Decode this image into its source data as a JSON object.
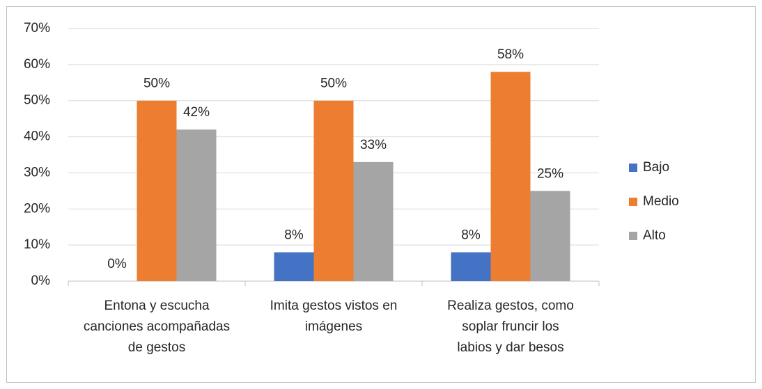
{
  "chart_data": {
    "type": "bar",
    "categories": [
      "Entona y escucha canciones acompañadas de gestos",
      "Imita gestos vistos en imágenes",
      "Realiza gestos, como soplar fruncir los labios y dar besos"
    ],
    "series": [
      {
        "name": "Bajo",
        "color": "#4472c4",
        "values": [
          0,
          8,
          8
        ],
        "value_labels": [
          "0%",
          "8%",
          "8%"
        ]
      },
      {
        "name": "Medio",
        "color": "#ed7d31",
        "values": [
          50,
          50,
          58
        ],
        "value_labels": [
          "50%",
          "50%",
          "58%"
        ]
      },
      {
        "name": "Alto",
        "color": "#a5a5a5",
        "values": [
          42,
          33,
          25
        ],
        "value_labels": [
          "42%",
          "33%",
          "25%"
        ]
      }
    ],
    "ylim": [
      0,
      70
    ],
    "yticks": [
      {
        "value": 0,
        "label": "0%"
      },
      {
        "value": 10,
        "label": "10%"
      },
      {
        "value": 20,
        "label": "20%"
      },
      {
        "value": 30,
        "label": "30%"
      },
      {
        "value": 40,
        "label": "40%"
      },
      {
        "value": 50,
        "label": "50%"
      },
      {
        "value": 60,
        "label": "60%"
      },
      {
        "value": 70,
        "label": "70%"
      }
    ],
    "grid": true,
    "legend": "right"
  }
}
